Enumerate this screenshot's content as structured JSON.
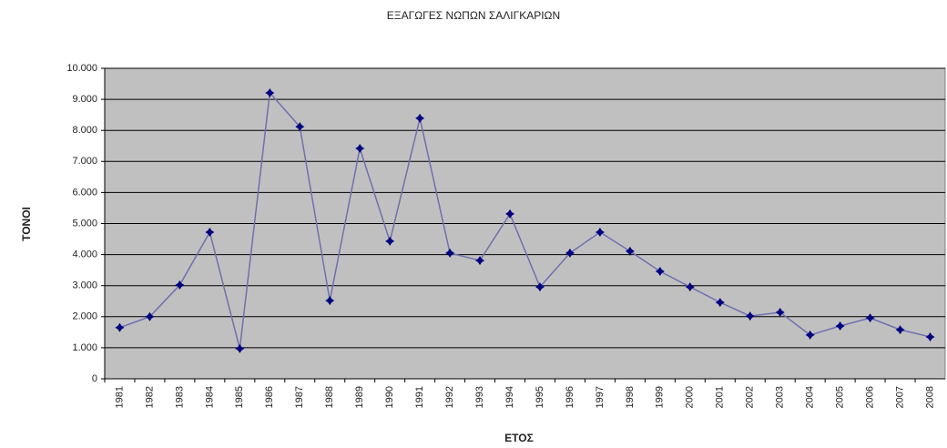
{
  "chart_data": {
    "type": "line",
    "title": "ΕΞΑΓΩΓΕΣ ΝΩΠΩΝ ΣΑΛΙΓΚΑΡΙΩΝ",
    "x_label": "ΕΤΟΣ",
    "y_label": "ΤΟΝΟΙ",
    "categories": [
      "1981",
      "1982",
      "1983",
      "1984",
      "1985",
      "1986",
      "1987",
      "1988",
      "1989",
      "1990",
      "1991",
      "1992",
      "1993",
      "1994",
      "1995",
      "1996",
      "1997",
      "1998",
      "1999",
      "2000",
      "2001",
      "2002",
      "2003",
      "2004",
      "2005",
      "2006",
      "2007",
      "2008"
    ],
    "series": [
      {
        "color": "#000080",
        "values": [
          1650,
          2000,
          3020,
          4720,
          970,
          9210,
          8120,
          2520,
          7420,
          4430,
          8390,
          4050,
          3810,
          5310,
          2960,
          4050,
          4720,
          4110,
          3460,
          2960,
          2460,
          2020,
          2140,
          1410,
          1700,
          1960,
          1580,
          1350
        ]
      }
    ],
    "line_color": "#6f6fb0",
    "background": "#c0c0c0",
    "ylim": [
      0,
      10000
    ],
    "yticks": [
      0,
      {
        "value": 1000,
        "label": "1.000"
      },
      {
        "value": 2000,
        "label": "2.000"
      },
      {
        "value": 3000,
        "label": "3.000"
      },
      {
        "value": 4000,
        "label": "4.000"
      },
      {
        "value": 5000,
        "label": "5.000"
      },
      {
        "value": 6000,
        "label": "6.000"
      },
      {
        "value": 7000,
        "label": "7.000"
      },
      {
        "value": 8000,
        "label": "8.000"
      },
      {
        "value": 9000,
        "label": "9.000"
      },
      {
        "value": 10000,
        "label": "10.000"
      }
    ],
    "grid": true
  }
}
